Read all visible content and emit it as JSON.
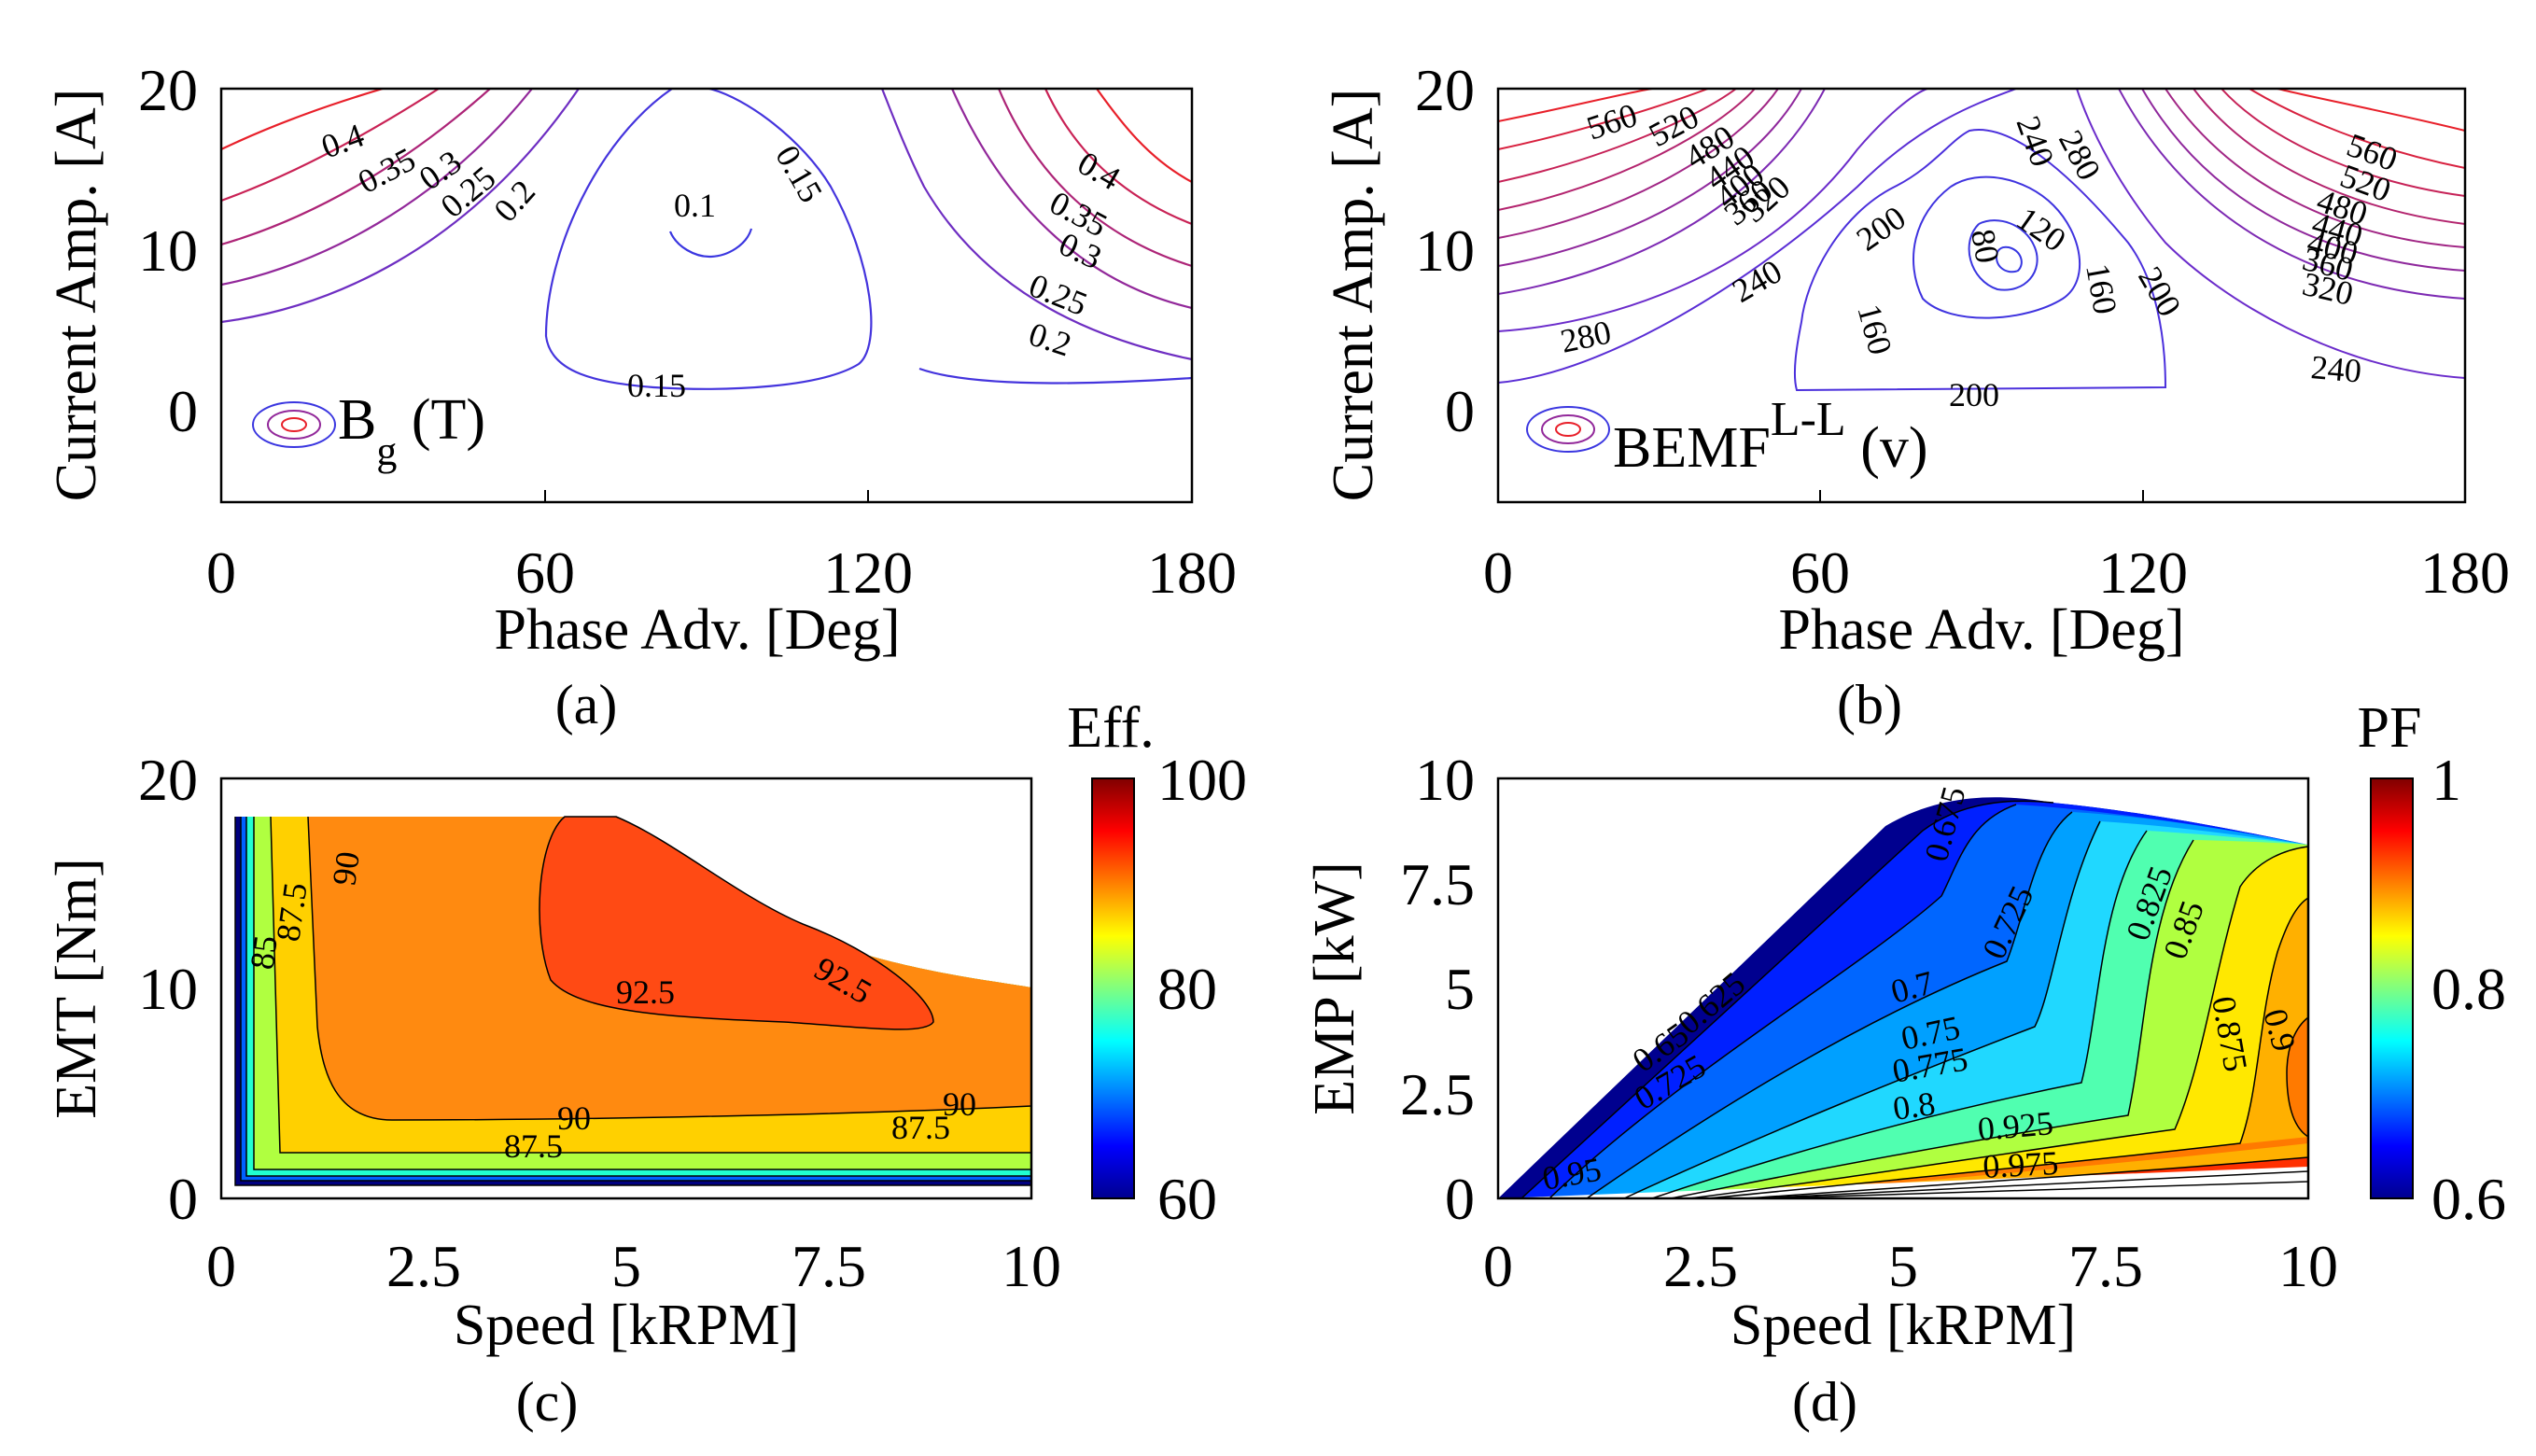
{
  "figure": {
    "captions": [
      "(a)",
      "(b)",
      "(c)",
      "(d)"
    ]
  },
  "chart_data": [
    {
      "id": "a",
      "type": "contour",
      "xlabel": "Phase Adv. [Deg]",
      "ylabel": "Current Amp. [A]",
      "xticks": [
        "0",
        "60",
        "120",
        "180"
      ],
      "yticks": [
        "0",
        "10",
        "20"
      ],
      "xlim": [
        0,
        180
      ],
      "ylim": [
        -6,
        20
      ],
      "legend": {
        "text": "B",
        "sub": "g",
        "unit": " (T)"
      },
      "contour_labels": [
        "0.4",
        "0.35",
        "0.3",
        "0.25",
        "0.2",
        "0.1",
        "0.15",
        "0.15",
        "0.4",
        "0.35",
        "0.3",
        "0.25",
        "0.2"
      ],
      "levels": [
        {
          "level": 0.4,
          "color": "#e8202a"
        },
        {
          "level": 0.35,
          "color": "#c92255"
        },
        {
          "level": 0.3,
          "color": "#ad2477"
        },
        {
          "level": 0.25,
          "color": "#92289a"
        },
        {
          "level": 0.2,
          "color": "#6e2ec2"
        },
        {
          "level": 0.15,
          "color": "#4434dd"
        },
        {
          "level": 0.1,
          "color": "#3a36e0"
        }
      ]
    },
    {
      "id": "b",
      "type": "contour",
      "xlabel": "Phase Adv. [Deg]",
      "ylabel": "Current Amp. [A]",
      "xticks": [
        "0",
        "60",
        "120",
        "180"
      ],
      "yticks": [
        "0",
        "10",
        "20"
      ],
      "xlim": [
        0,
        180
      ],
      "ylim": [
        -6,
        20
      ],
      "legend": {
        "text": "BEMF",
        "sup": "L-L",
        "unit": " (v)"
      },
      "contour_labels": [
        "560",
        "520",
        "480",
        "440",
        "400",
        "360",
        "320",
        "280",
        "240",
        "200",
        "160",
        "120",
        "80",
        "160",
        "200",
        "240",
        "280",
        "200",
        "560",
        "520",
        "480",
        "440",
        "400",
        "360",
        "320",
        "240"
      ],
      "levels": [
        560,
        520,
        480,
        440,
        400,
        360,
        320,
        280,
        240,
        200,
        160,
        120,
        80
      ]
    },
    {
      "id": "c",
      "type": "filled_contour",
      "xlabel": "Speed [kRPM]",
      "ylabel": "EMT [Nm]",
      "xticks": [
        "0",
        "2.5",
        "5",
        "7.5",
        "10"
      ],
      "yticks": [
        "0",
        "10",
        "20"
      ],
      "xlim": [
        0,
        10
      ],
      "ylim": [
        0,
        20
      ],
      "colorbar": {
        "title": "Eff.",
        "ticks": [
          "60",
          "80",
          "100"
        ],
        "range": [
          60,
          100
        ]
      },
      "contour_labels": [
        "92.5",
        "92.5",
        "90",
        "87.5",
        "85",
        "90",
        "90",
        "87.5",
        "87.5"
      ],
      "levels": [
        60,
        70,
        80,
        85,
        87.5,
        90,
        92.5
      ]
    },
    {
      "id": "d",
      "type": "filled_contour",
      "xlabel": "Speed [kRPM]",
      "ylabel": "EMP [kW]",
      "xticks": [
        "0",
        "2.5",
        "5",
        "7.5",
        "10"
      ],
      "yticks": [
        "0",
        "2.5",
        "5",
        "7.5",
        "10"
      ],
      "xlim": [
        0,
        10
      ],
      "ylim": [
        0,
        10
      ],
      "colorbar": {
        "title": "PF",
        "ticks": [
          "0.6",
          "0.8",
          "1"
        ],
        "range": [
          0.6,
          1
        ]
      },
      "contour_labels": [
        "0.675",
        "0.625",
        "0.65",
        "0.725",
        "0.7",
        "0.725",
        "0.75",
        "0.775",
        "0.8",
        "0.825",
        "0.85",
        "0.875",
        "0.9",
        "0.925",
        "0.975",
        "0.95"
      ],
      "levels": [
        0.6,
        0.625,
        0.65,
        0.675,
        0.7,
        0.725,
        0.75,
        0.775,
        0.8,
        0.825,
        0.85,
        0.875,
        0.9,
        0.925,
        0.95,
        0.975,
        1.0
      ]
    }
  ]
}
